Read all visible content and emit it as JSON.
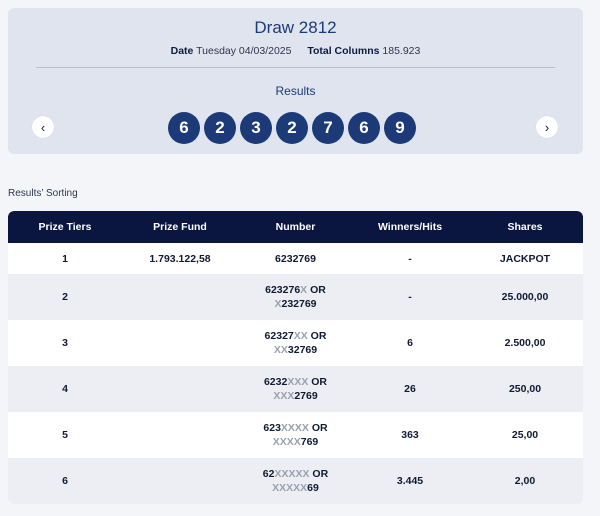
{
  "draw": {
    "title": "Draw 2812",
    "date_label": "Date",
    "date_value": "Tuesday 04/03/2025",
    "columns_label": "Total Columns",
    "columns_value": "185.923"
  },
  "results": {
    "label": "Results",
    "numbers": [
      "6",
      "2",
      "3",
      "2",
      "7",
      "6",
      "9"
    ],
    "prev_icon": "chevron-left-icon",
    "next_icon": "chevron-right-icon",
    "prev_glyph": "‹",
    "next_glyph": "›"
  },
  "sorting_label": "Results’ Sorting",
  "table": {
    "headers": [
      "Prize Tiers",
      "Prize Fund",
      "Number",
      "Winners/Hits",
      "Shares"
    ],
    "rows": [
      {
        "tier": "1",
        "fund": "1.793.122,58",
        "winners": "-",
        "shares": "JACKPOT",
        "number": [
          {
            "t": "6232769",
            "m": false
          }
        ]
      },
      {
        "tier": "2",
        "fund": "",
        "winners": "-",
        "shares": "25.000,00",
        "number": [
          {
            "t": "623276",
            "m": false
          },
          {
            "t": "X",
            "m": true
          },
          {
            "t": " OR",
            "m": false
          },
          {
            "t": "\n",
            "m": false
          },
          {
            "t": "X",
            "m": true
          },
          {
            "t": "232769",
            "m": false
          }
        ]
      },
      {
        "tier": "3",
        "fund": "",
        "winners": "6",
        "shares": "2.500,00",
        "number": [
          {
            "t": "62327",
            "m": false
          },
          {
            "t": "XX",
            "m": true
          },
          {
            "t": " OR",
            "m": false
          },
          {
            "t": "\n",
            "m": false
          },
          {
            "t": "XX",
            "m": true
          },
          {
            "t": "32769",
            "m": false
          }
        ]
      },
      {
        "tier": "4",
        "fund": "",
        "winners": "26",
        "shares": "250,00",
        "number": [
          {
            "t": "6232",
            "m": false
          },
          {
            "t": "XXX",
            "m": true
          },
          {
            "t": " OR",
            "m": false
          },
          {
            "t": "\n",
            "m": false
          },
          {
            "t": "XXX",
            "m": true
          },
          {
            "t": "2769",
            "m": false
          }
        ]
      },
      {
        "tier": "5",
        "fund": "",
        "winners": "363",
        "shares": "25,00",
        "number": [
          {
            "t": "623",
            "m": false
          },
          {
            "t": "XXXX",
            "m": true
          },
          {
            "t": " OR",
            "m": false
          },
          {
            "t": "\n",
            "m": false
          },
          {
            "t": "XXXX",
            "m": true
          },
          {
            "t": "769",
            "m": false
          }
        ]
      },
      {
        "tier": "6",
        "fund": "",
        "winners": "3.445",
        "shares": "2,00",
        "number": [
          {
            "t": "62",
            "m": false
          },
          {
            "t": "XXXXX",
            "m": true
          },
          {
            "t": " OR",
            "m": false
          },
          {
            "t": "\n",
            "m": false
          },
          {
            "t": "XXXXX",
            "m": true
          },
          {
            "t": "69",
            "m": false
          }
        ]
      }
    ]
  },
  "colors": {
    "ball": "#1c3a77",
    "header": "#0b1640",
    "masked_digit": "#9aa0ad"
  }
}
